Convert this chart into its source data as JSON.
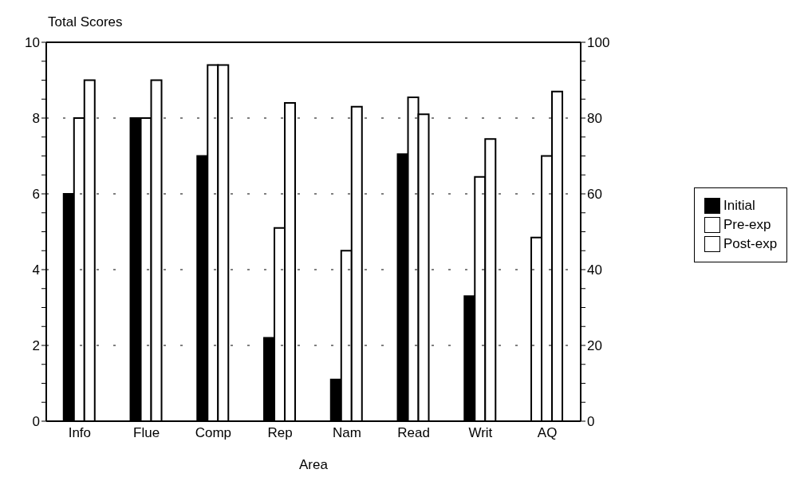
{
  "chart_data": {
    "type": "bar",
    "ylabel": "Total Scores",
    "xlabel": "Area",
    "categories": [
      "Info",
      "Flue",
      "Comp",
      "Rep",
      "Nam",
      "Read",
      "Writ",
      "AQ"
    ],
    "series": [
      {
        "name": "Initial",
        "color": "#000000",
        "values": [
          6,
          8,
          7,
          2.2,
          1.1,
          7.05,
          3.3,
          null
        ]
      },
      {
        "name": "Pre-exp",
        "color": "#ffffff",
        "values": [
          8,
          8,
          9.4,
          5.1,
          4.5,
          8.55,
          6.45,
          null
        ]
      },
      {
        "name": "Post-exp",
        "color": "#ffffff",
        "values": [
          9,
          9,
          9.4,
          8.4,
          8.3,
          8.1,
          7.45,
          null
        ]
      },
      {
        "color": "#ffffff",
        "axis": "y2",
        "values": [
          null,
          null,
          null,
          null,
          null,
          null,
          null,
          48.5
        ]
      },
      {
        "color": "#ffffff",
        "axis": "y2",
        "values": [
          null,
          null,
          null,
          null,
          null,
          null,
          null,
          70
        ]
      },
      {
        "color": "#ffffff",
        "axis": "y2",
        "values": [
          null,
          null,
          null,
          null,
          null,
          null,
          null,
          87
        ]
      }
    ],
    "ylim": [
      0,
      10
    ],
    "yticks": [
      0,
      {
        "value": 0.5,
        "label": null
      },
      {
        "value": 1,
        "label": null
      },
      {
        "value": 1.5,
        "label": null
      },
      2,
      {
        "value": 2.5,
        "label": null
      },
      {
        "value": 3,
        "label": null
      },
      {
        "value": 3.5,
        "label": null
      },
      4,
      {
        "value": 4.5,
        "label": null
      },
      {
        "value": 5,
        "label": null
      },
      {
        "value": 5.5,
        "label": null
      },
      6,
      {
        "value": 6.5,
        "label": null
      },
      {
        "value": 7,
        "label": null
      },
      {
        "value": 7.5,
        "label": null
      },
      8,
      {
        "value": 8.5,
        "label": null
      },
      {
        "value": 9,
        "label": null
      },
      {
        "value": 9.5,
        "label": null
      },
      10
    ],
    "y2lim": [
      0,
      100
    ],
    "y2ticks": [
      0,
      {
        "value": 5,
        "label": null
      },
      {
        "value": 10,
        "label": null
      },
      {
        "value": 15,
        "label": null
      },
      20,
      {
        "value": 25,
        "label": null
      },
      {
        "value": 30,
        "label": null
      },
      {
        "value": 35,
        "label": null
      },
      40,
      {
        "value": 45,
        "label": null
      },
      {
        "value": 50,
        "label": null
      },
      {
        "value": 55,
        "label": null
      },
      60,
      {
        "value": 65,
        "label": null
      },
      {
        "value": 70,
        "label": null
      },
      {
        "value": 75,
        "label": null
      },
      80,
      {
        "value": 85,
        "label": null
      },
      {
        "value": 90,
        "label": null
      },
      {
        "value": 95,
        "label": null
      },
      100
    ],
    "grid": "y",
    "legend": "right"
  }
}
